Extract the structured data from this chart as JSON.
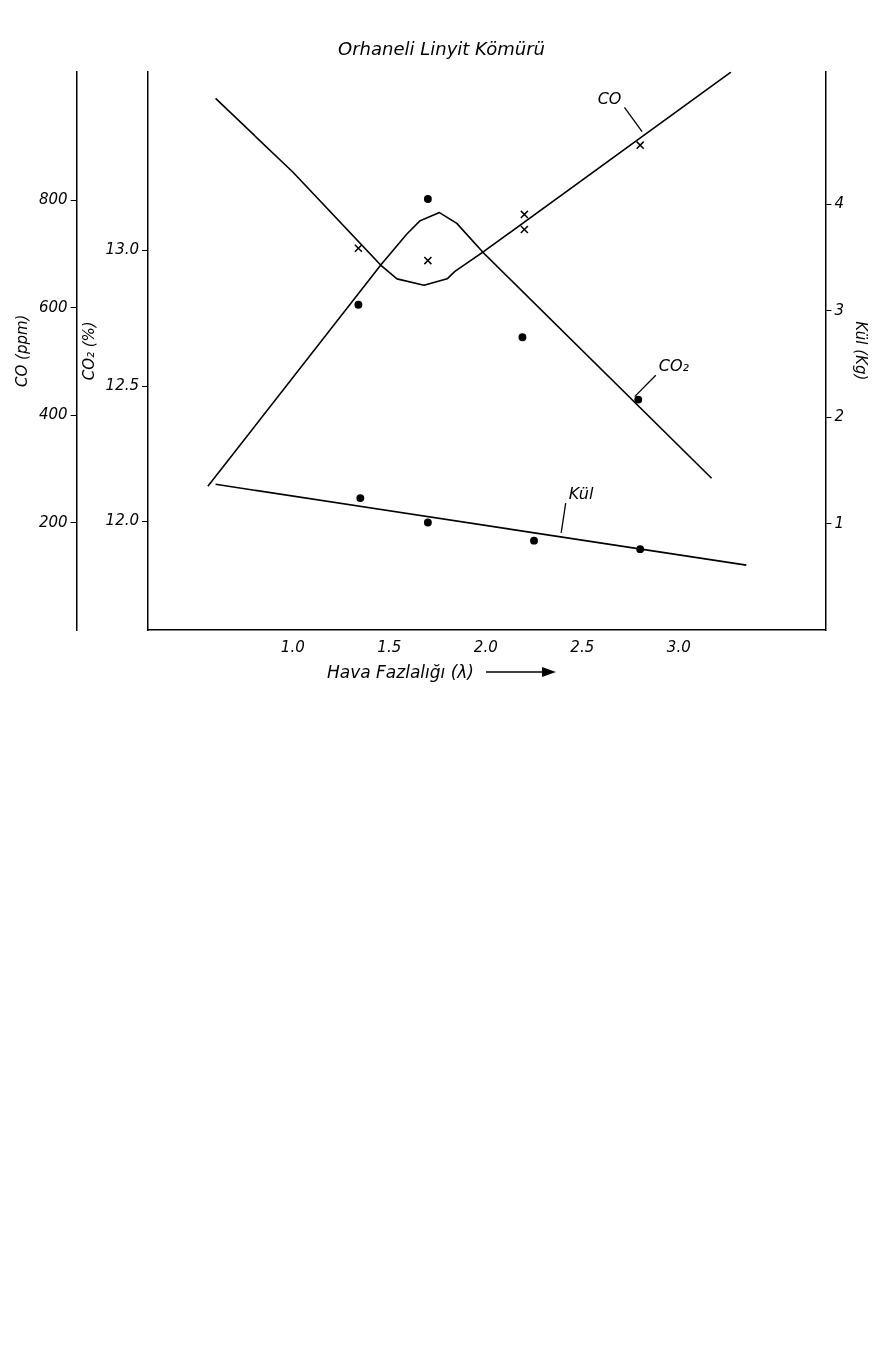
{
  "chart_data": {
    "type": "line",
    "title": "Orhaneli Linyit Kömürü",
    "xlabel": "Hava Fazlalığı (λ)",
    "ylabel": "CO (ppm)",
    "y2label": "CO₂ (%)",
    "y3label": "Kül (Kg)",
    "xlim": [
      0.25,
      3.76
    ],
    "xticks": [
      {
        "value": 1,
        "label": "1.0"
      },
      {
        "value": 1.5,
        "label": "1.5"
      },
      {
        "value": 2,
        "label": "2.0"
      },
      {
        "value": 2.5,
        "label": "2.5"
      },
      {
        "value": 3,
        "label": "3.0"
      }
    ],
    "ylim": [
      0,
      1040
    ],
    "yticks": [
      200,
      400,
      600,
      800
    ],
    "y2lim": [
      11.6,
      13.66
    ],
    "y2ticks": [
      {
        "value": 12,
        "label": "12.0"
      },
      12.5,
      {
        "value": 13,
        "label": "13.0"
      }
    ],
    "y3lim": [
      0,
      5.25
    ],
    "y3ticks": [
      1,
      2,
      3,
      4
    ],
    "grid": false,
    "legend": false,
    "series": [
      {
        "type": "line",
        "name": "CO",
        "color": "#000000",
        "marker": "none",
        "x": [
          0.6,
          1.0,
          1.46,
          1.54,
          1.68,
          1.8,
          1.84,
          1.99,
          3.27
        ],
        "values": [
          990,
          853,
          678,
          654,
          642,
          654,
          668,
          705,
          1039
        ]
      },
      {
        "type": "scatter",
        "color": "#000000",
        "marker": "cross",
        "x": [
          1.34,
          1.7,
          2.2,
          2.2,
          2.8
        ],
        "values": [
          711,
          688,
          774,
          746,
          903
        ]
      },
      {
        "type": "line",
        "name": "CO₂",
        "axis": "y2",
        "color": "#000000",
        "marker": "none",
        "x": [
          0.56,
          1.46,
          1.59,
          1.66,
          1.76,
          1.85,
          1.99,
          3.17
        ],
        "values": [
          12.13,
          12.95,
          13.06,
          13.11,
          13.14,
          13.1,
          12.99,
          12.16
        ]
      },
      {
        "type": "scatter",
        "axis": "y2",
        "color": "#000000",
        "marker": "circle",
        "x": [
          1.34,
          1.7,
          2.19,
          2.79
        ],
        "values": [
          12.8,
          13.19,
          12.68,
          12.45
        ]
      },
      {
        "type": "line",
        "name": "Kül",
        "axis": "y3",
        "color": "#000000",
        "marker": "none",
        "x": [
          0.6,
          3.35
        ],
        "values": [
          1.37,
          0.61
        ]
      },
      {
        "type": "scatter",
        "axis": "y3",
        "color": "#000000",
        "marker": "circle",
        "x": [
          1.35,
          1.7,
          2.25,
          2.8
        ],
        "values": [
          1.24,
          1.01,
          0.84,
          0.76
        ]
      }
    ]
  }
}
